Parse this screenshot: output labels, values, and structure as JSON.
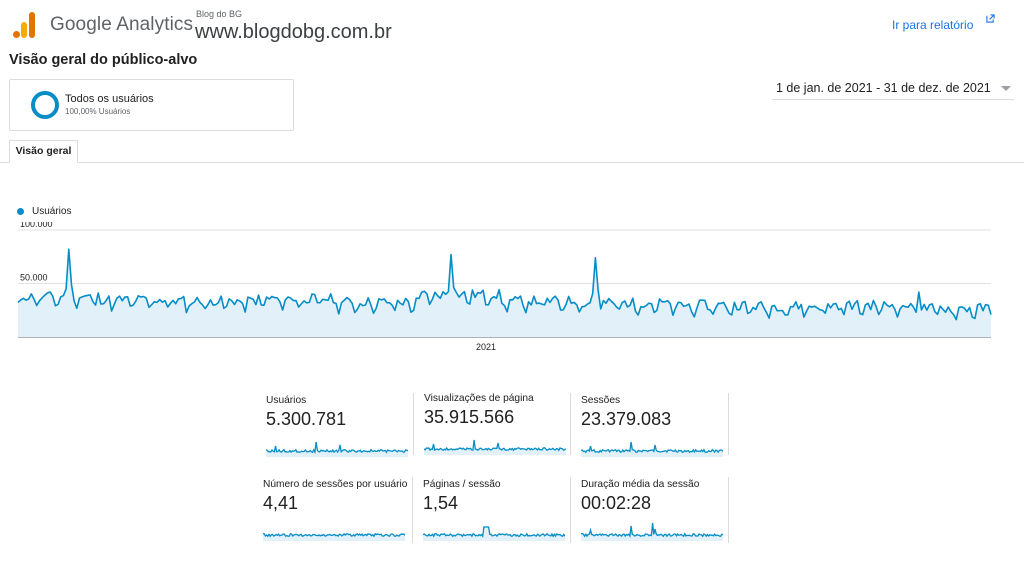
{
  "header": {
    "app_title": "Google Analytics",
    "account_label": "Blog do BG",
    "property_url": "www.blogdobg.com.br",
    "report_link": "Ir para relatório"
  },
  "page": {
    "title": "Visão geral do público-alvo",
    "segment": {
      "name": "Todos os usuários",
      "sub": "100,00% Usuários"
    },
    "date_range": "1 de jan. de 2021 - 31 de dez. de 2021",
    "tab": "Visão geral"
  },
  "colors": {
    "series": "#058dc7",
    "fill": "#e1f0f9",
    "link": "#1a73e8"
  },
  "icons": {
    "external_link": "external-link-icon",
    "dropdown": "caret-down-icon"
  },
  "chart_data": {
    "type": "area",
    "series_name": "Usuários",
    "y_ticks": [
      "100.000",
      "50.000"
    ],
    "ylim": [
      0,
      100000
    ],
    "x_tick": "2021",
    "x_range": [
      "2021-01-01",
      "2021-12-31"
    ],
    "grid": true,
    "legend": "top-left",
    "daily_baseline": {
      "jan": 36000,
      "feb": 33000,
      "mar": 32000,
      "apr": 34000,
      "may": 31000,
      "jun": 38000,
      "jul": 32000,
      "aug": 30000,
      "sep": 28000,
      "oct": 27000,
      "nov": 28000,
      "dec": 25000
    },
    "peaks": [
      {
        "date": "2021-01-20",
        "value": 82000
      },
      {
        "date": "2021-06-12",
        "value": 77000
      },
      {
        "date": "2021-08-05",
        "value": 74000
      },
      {
        "date": "2021-12-04",
        "value": 42000
      }
    ]
  },
  "metrics": [
    {
      "label": "Usuários",
      "value": "5.300.781"
    },
    {
      "label": "Visualizações de página",
      "value": "35.915.566"
    },
    {
      "label": "Sessões",
      "value": "23.379.083"
    },
    {
      "label": "Número de sessões por usuário",
      "value": "4,41"
    },
    {
      "label": "Páginas / sessão",
      "value": "1,54"
    },
    {
      "label": "Duração média da sessão",
      "value": "00:02:28"
    }
  ]
}
